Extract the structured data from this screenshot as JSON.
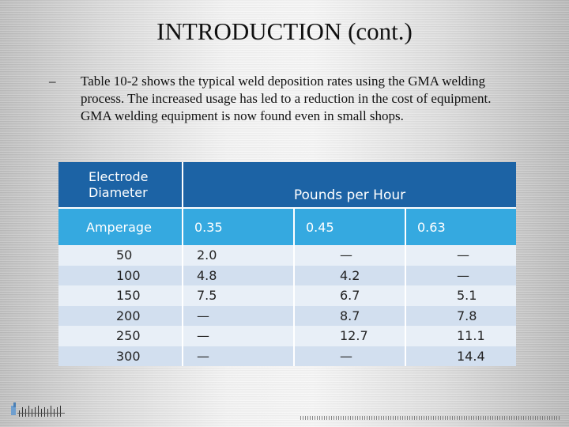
{
  "slide": {
    "title": "INTRODUCTION (cont.)",
    "bullet_marker": "–",
    "bullet_text": "Table 10-2 shows the typical weld deposition rates using the GMA welding process. The increased usage has led to a reduction in the cost of equipment. GMA welding equipment is now found even in small shops."
  },
  "table": {
    "header_left_line1": "Electrode",
    "header_left_line2": "Diameter",
    "header_right": "Pounds per Hour",
    "subheader": [
      "Amperage",
      "0.35",
      "0.45",
      "0.63"
    ],
    "rows": [
      [
        "50",
        "2.0",
        "—",
        "—"
      ],
      [
        "100",
        "4.8",
        "4.2",
        "—"
      ],
      [
        "150",
        "7.5",
        "6.7",
        "5.1"
      ],
      [
        "200",
        "—",
        "8.7",
        "7.8"
      ],
      [
        "250",
        "—",
        "12.7",
        "11.1"
      ],
      [
        "300",
        "—",
        "—",
        "14.4"
      ]
    ]
  },
  "colors": {
    "header_dark": "#1c63a5",
    "header_light": "#35a9e0",
    "row_light": "#e8eff7",
    "row_dark": "#d2dfef"
  }
}
